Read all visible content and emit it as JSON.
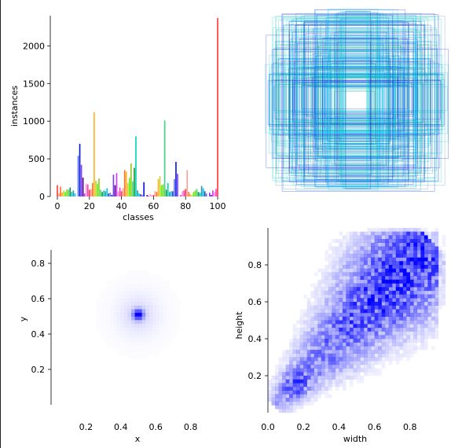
{
  "chart_data": [
    {
      "type": "bar",
      "xlabel": "classes",
      "ylabel": "instances",
      "xlim": [
        -2,
        102
      ],
      "ylim": [
        0,
        2400
      ],
      "xticks": [
        "0",
        "20",
        "40",
        "60",
        "80",
        "100"
      ],
      "yticks": [
        "0",
        "500",
        "1000",
        "1500",
        "2000"
      ],
      "palette": [
        "#ff3838",
        "#ff9d97",
        "#ff701f",
        "#ffb21d",
        "#cfd231",
        "#48f90a",
        "#92cc17",
        "#3ddb86",
        "#1a9334",
        "#00d4bb",
        "#2c99a8",
        "#00c2ff",
        "#344593",
        "#6473ff",
        "#0018ec",
        "#8438ff",
        "#520085",
        "#cb38ff",
        "#ff95c8",
        "#ff37c7"
      ],
      "values": [
        150,
        40,
        130,
        55,
        80,
        60,
        95,
        90,
        120,
        60,
        80,
        40,
        0,
        540,
        700,
        420,
        250,
        40,
        170,
        160,
        90,
        100,
        180,
        1120,
        210,
        170,
        240,
        90,
        60,
        80,
        70,
        110,
        40,
        50,
        20,
        290,
        150,
        310,
        70,
        120,
        70,
        110,
        350,
        330,
        180,
        250,
        440,
        200,
        380,
        800,
        80,
        40,
        30,
        20,
        190,
        0,
        20,
        10,
        30,
        10,
        20,
        70,
        60,
        230,
        270,
        150,
        160,
        1010,
        90,
        180,
        60,
        70,
        70,
        230,
        460,
        300,
        0,
        20,
        70,
        80,
        100,
        350,
        60,
        30,
        20,
        60,
        80,
        100,
        60,
        50,
        140,
        110,
        70,
        40,
        0,
        50,
        20,
        80,
        60,
        100,
        2370
      ]
    },
    {
      "type": "overlay",
      "description_colors": [
        "#00c2ff",
        "#0018ec",
        "#2c99a8",
        "#00d4bb"
      ]
    },
    {
      "type": "heatmap",
      "xlabel": "x",
      "ylabel": "y",
      "xlim": [
        0,
        1
      ],
      "ylim": [
        0,
        1
      ],
      "xticks": [
        "0.2",
        "0.4",
        "0.6",
        "0.8"
      ],
      "yticks": [
        "0.2",
        "0.4",
        "0.6",
        "0.8"
      ],
      "center": [
        0.5,
        0.51
      ],
      "color": "#0000ff"
    },
    {
      "type": "heatmap",
      "xlabel": "width",
      "ylabel": "height",
      "xlim": [
        0,
        1
      ],
      "ylim": [
        0,
        1
      ],
      "xticks": [
        "0.0",
        "0.2",
        "0.4",
        "0.6",
        "0.8"
      ],
      "yticks": [
        "0.2",
        "0.4",
        "0.6",
        "0.8"
      ],
      "color": "#0000ff"
    }
  ]
}
